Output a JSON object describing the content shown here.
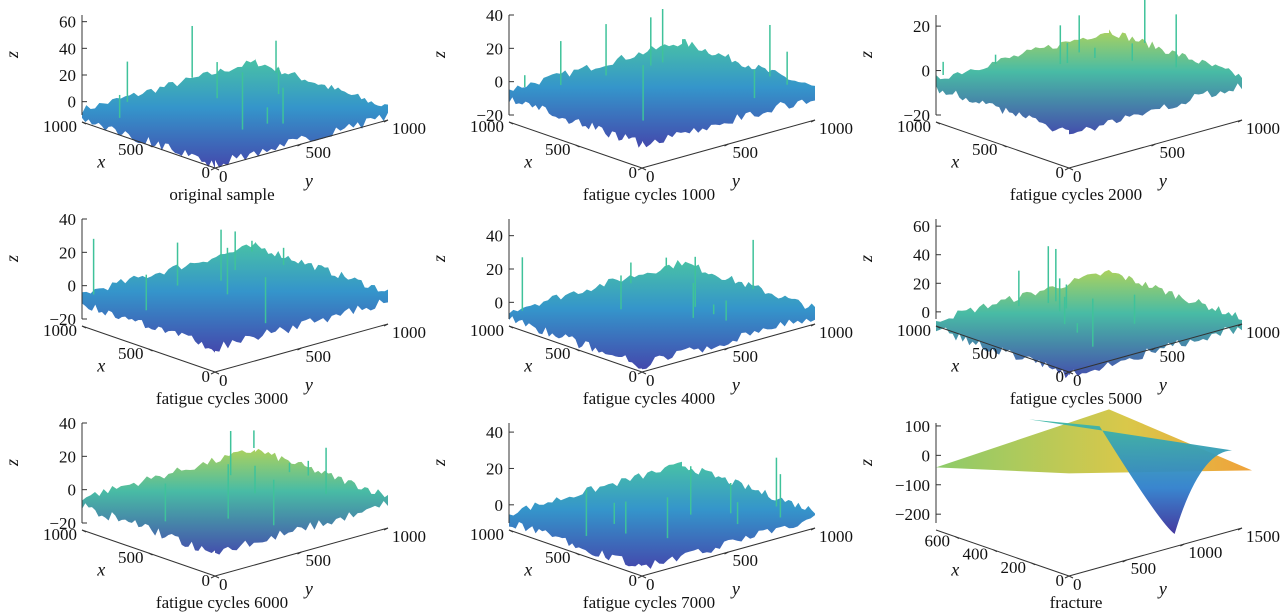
{
  "chart_data": [
    {
      "type": "surface",
      "title": "original sample",
      "xlabel": "x",
      "ylabel": "y",
      "zlabel": "z",
      "xlim": [
        0,
        1000
      ],
      "ylim": [
        0,
        1000
      ],
      "zlim": [
        -10,
        65
      ],
      "xticks": [
        0,
        500,
        1000
      ],
      "yticks": [
        0,
        500,
        1000
      ],
      "zticks": [
        0,
        20,
        40,
        60
      ]
    },
    {
      "type": "surface",
      "title": "fatigue cycles 1000",
      "xlabel": "x",
      "ylabel": "y",
      "zlabel": "z",
      "xlim": [
        0,
        1000
      ],
      "ylim": [
        0,
        1000
      ],
      "zlim": [
        -20,
        40
      ],
      "xticks": [
        0,
        500,
        1000
      ],
      "yticks": [
        0,
        500,
        1000
      ],
      "zticks": [
        {
          "value": -20,
          "label": "−20"
        },
        0,
        20,
        40
      ]
    },
    {
      "type": "surface",
      "title": "fatigue cycles 2000",
      "xlabel": "x",
      "ylabel": "y",
      "zlabel": "z",
      "xlim": [
        0,
        1000
      ],
      "ylim": [
        0,
        1000
      ],
      "zlim": [
        -20,
        25
      ],
      "xticks": [
        0,
        500,
        1000
      ],
      "yticks": [
        0,
        500,
        1000
      ],
      "zticks": [
        {
          "value": -20,
          "label": "−20"
        },
        0,
        20
      ]
    },
    {
      "type": "surface",
      "title": "fatigue cycles 3000",
      "xlabel": "x",
      "ylabel": "y",
      "zlabel": "z",
      "xlim": [
        0,
        1000
      ],
      "ylim": [
        0,
        1000
      ],
      "zlim": [
        -20,
        40
      ],
      "xticks": [
        0,
        500,
        1000
      ],
      "yticks": [
        0,
        500,
        1000
      ],
      "zticks": [
        {
          "value": -20,
          "label": "−20"
        },
        0,
        20,
        40
      ]
    },
    {
      "type": "surface",
      "title": "fatigue cycles 4000",
      "xlabel": "x",
      "ylabel": "y",
      "zlabel": "z",
      "xlim": [
        0,
        1000
      ],
      "ylim": [
        0,
        1000
      ],
      "zlim": [
        -10,
        50
      ],
      "xticks": [
        0,
        500,
        1000
      ],
      "yticks": [
        0,
        500,
        1000
      ],
      "zticks": [
        0,
        20,
        40
      ]
    },
    {
      "type": "surface",
      "title": "fatigue cycles 5000",
      "xlabel": "x",
      "ylabel": "y",
      "zlabel": "z",
      "xlim": [
        0,
        1000
      ],
      "ylim": [
        0,
        1000
      ],
      "zlim": [
        -5,
        65
      ],
      "xticks": [
        0,
        500,
        1000
      ],
      "yticks": [
        0,
        500,
        1000
      ],
      "zticks": [
        0,
        20,
        40,
        60
      ]
    },
    {
      "type": "surface",
      "title": "fatigue cycles 6000",
      "xlabel": "x",
      "ylabel": "y",
      "zlabel": "z",
      "xlim": [
        0,
        1000
      ],
      "ylim": [
        0,
        1000
      ],
      "zlim": [
        -20,
        40
      ],
      "xticks": [
        0,
        500,
        1000
      ],
      "yticks": [
        0,
        500,
        1000
      ],
      "zticks": [
        {
          "value": -20,
          "label": "−20"
        },
        0,
        20,
        40
      ]
    },
    {
      "type": "surface",
      "title": "fatigue cycles 7000",
      "xlabel": "x",
      "ylabel": "y",
      "zlabel": "z",
      "xlim": [
        0,
        1000
      ],
      "ylim": [
        0,
        1000
      ],
      "zlim": [
        -10,
        45
      ],
      "xticks": [
        0,
        500,
        1000
      ],
      "yticks": [
        0,
        500,
        1000
      ],
      "zticks": [
        0,
        20,
        40
      ]
    },
    {
      "type": "surface",
      "title": "fracture",
      "xlabel": "x",
      "ylabel": "y",
      "zlabel": "z",
      "xlim": [
        0,
        700
      ],
      "ylim": [
        0,
        1500
      ],
      "zlim": [
        -230,
        110
      ],
      "xticks": [
        0,
        200,
        400,
        600
      ],
      "yticks": [
        0,
        500,
        1000,
        1500
      ],
      "zticks": [
        {
          "value": -200,
          "label": "−200"
        },
        {
          "value": -100,
          "label": "−100"
        },
        0,
        100
      ]
    }
  ]
}
